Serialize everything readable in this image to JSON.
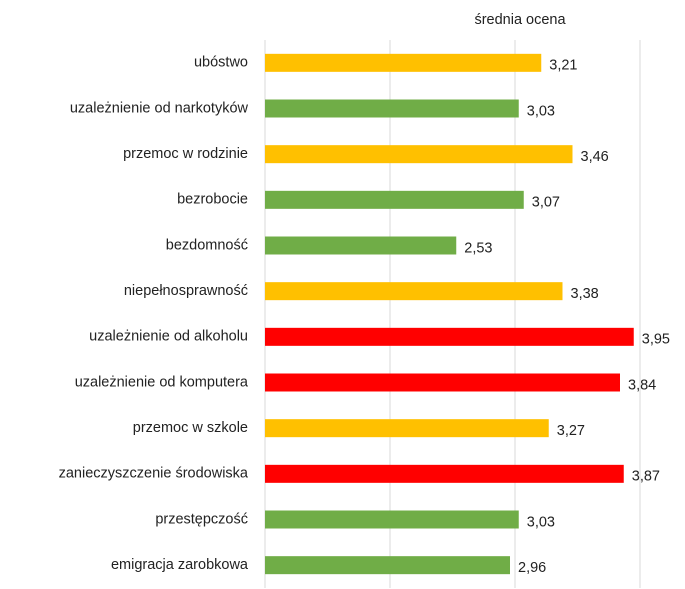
{
  "chart_data": {
    "type": "hbar",
    "title": "średnia ocena",
    "categories": [
      "ubóstwo",
      "uzależnienie od narkotyków",
      "przemoc w rodzinie",
      "bezrobocie",
      "bezdomność",
      "niepełnosprawność",
      "uzależnienie od alkoholu",
      "uzależnienie od komputera",
      "przemoc w szkole",
      "zanieczyszczenie środowiska",
      "przestępczość",
      "emigracja zarobkowa"
    ],
    "values": [
      3.21,
      3.03,
      3.46,
      3.07,
      2.53,
      3.38,
      3.95,
      3.84,
      3.27,
      3.87,
      3.03,
      2.96
    ],
    "value_labels": [
      "3,21",
      "3,03",
      "3,46",
      "3,07",
      "2,53",
      "3,38",
      "3,95",
      "3,84",
      "3,27",
      "3,87",
      "3,03",
      "2,96"
    ],
    "colors": [
      "#ffc000",
      "#70ad47",
      "#ffc000",
      "#70ad47",
      "#70ad47",
      "#ffc000",
      "#ff0000",
      "#ff0000",
      "#ffc000",
      "#ff0000",
      "#70ad47",
      "#70ad47"
    ],
    "xlim": [
      1,
      4
    ],
    "xticks": [
      1,
      2,
      3,
      4
    ],
    "grid": true
  }
}
